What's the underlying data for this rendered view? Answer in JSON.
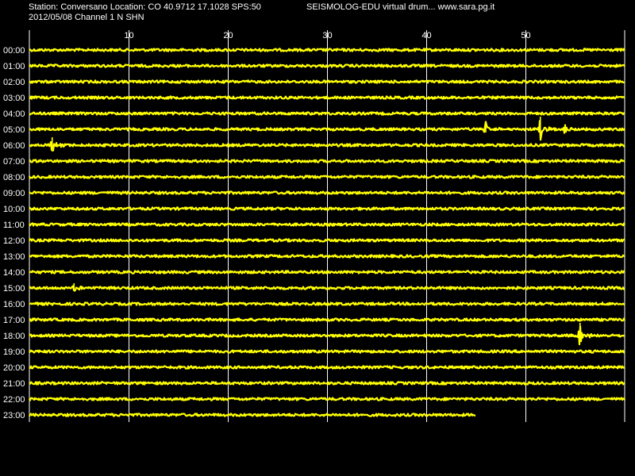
{
  "header": {
    "station_line": "Station: Conversano Location: CO 40.9712 17.1028 SPS:50",
    "program_line": "SEISMOLOG-EDU virtual drum... www.sara.pg.it",
    "date_line": "2012/05/08  Channel 1 N SHN"
  },
  "colors": {
    "background": "#000000",
    "trace": "#ffff00",
    "grid": "#ffffff",
    "text": "#ffffff"
  },
  "chart_data": {
    "type": "line",
    "title": "",
    "xlabel": "",
    "ylabel": "",
    "x_unit": "minutes",
    "xlim": [
      0,
      60
    ],
    "x_ticks": [
      10,
      20,
      30,
      40,
      50
    ],
    "grid": true,
    "hour_labels": [
      "00:00",
      "01:00",
      "02:00",
      "03:00",
      "04:00",
      "05:00",
      "06:00",
      "07:00",
      "08:00",
      "09:00",
      "10:00",
      "11:00",
      "12:00",
      "13:00",
      "14:00",
      "15:00",
      "16:00",
      "17:00",
      "18:00",
      "19:00",
      "20:00",
      "21:00",
      "22:00",
      "23:00"
    ],
    "last_trace_end_minute": 45,
    "events": [
      {
        "hour": "05:00",
        "minute": 46.0,
        "amplitude": "medium"
      },
      {
        "hour": "05:00",
        "minute": 51.5,
        "amplitude": "large"
      },
      {
        "hour": "05:00",
        "minute": 54.0,
        "amplitude": "small"
      },
      {
        "hour": "06:00",
        "minute": 2.3,
        "amplitude": "medium"
      },
      {
        "hour": "15:00",
        "minute": 4.5,
        "amplitude": "small"
      },
      {
        "hour": "18:00",
        "minute": 55.5,
        "amplitude": "large"
      }
    ]
  }
}
